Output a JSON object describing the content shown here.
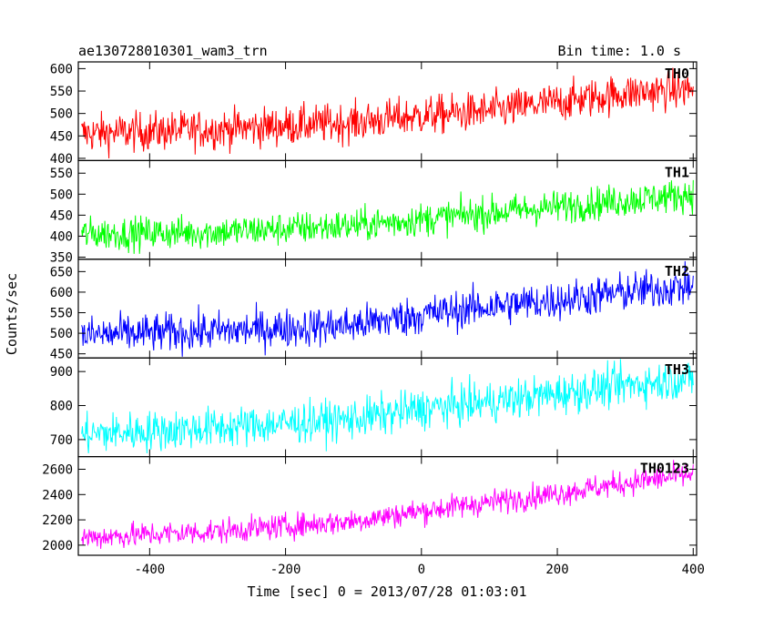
{
  "chart_data": {
    "type": "line",
    "title": "ae130728010301_wam3_trn",
    "bin_time_label": "Bin time: 1.0 s",
    "xlabel": "Time [sec] 0 = 2013/07/28 01:03:01",
    "ylabel": "Counts/sec",
    "x_range": [
      -505,
      405
    ],
    "x_ticks": [
      -400,
      -200,
      0,
      200,
      400
    ],
    "grid": false,
    "panels": [
      {
        "name": "TH0",
        "color": "#ff0000",
        "ylim": [
          395,
          615
        ],
        "yticks": [
          400,
          450,
          500,
          550,
          600
        ],
        "trend": [
          [
            -500,
            455
          ],
          [
            -300,
            465
          ],
          [
            -100,
            480
          ],
          [
            0,
            495
          ],
          [
            100,
            505
          ],
          [
            200,
            525
          ],
          [
            300,
            545
          ],
          [
            400,
            555
          ]
        ],
        "noise": 22
      },
      {
        "name": "TH1",
        "color": "#00ff00",
        "ylim": [
          345,
          580
        ],
        "yticks": [
          350,
          400,
          450,
          500,
          550
        ],
        "trend": [
          [
            -500,
            405
          ],
          [
            -300,
            410
          ],
          [
            -100,
            425
          ],
          [
            0,
            440
          ],
          [
            100,
            455
          ],
          [
            200,
            470
          ],
          [
            300,
            485
          ],
          [
            400,
            500
          ]
        ],
        "noise": 20
      },
      {
        "name": "TH2",
        "color": "#0000ff",
        "ylim": [
          440,
          680
        ],
        "yticks": [
          450,
          500,
          550,
          600,
          650
        ],
        "trend": [
          [
            -500,
            495
          ],
          [
            -300,
            505
          ],
          [
            -100,
            520
          ],
          [
            0,
            545
          ],
          [
            100,
            565
          ],
          [
            200,
            580
          ],
          [
            300,
            600
          ],
          [
            400,
            615
          ]
        ],
        "noise": 24
      },
      {
        "name": "TH3",
        "color": "#00ffff",
        "ylim": [
          650,
          940
        ],
        "yticks": [
          700,
          800,
          900
        ],
        "trend": [
          [
            -500,
            715
          ],
          [
            -300,
            735
          ],
          [
            -100,
            760
          ],
          [
            0,
            790
          ],
          [
            100,
            810
          ],
          [
            200,
            835
          ],
          [
            300,
            860
          ],
          [
            400,
            880
          ]
        ],
        "noise": 30
      },
      {
        "name": "TH0123",
        "color": "#ff00ff",
        "ylim": [
          1920,
          2700
        ],
        "yticks": [
          2000,
          2200,
          2400,
          2600
        ],
        "trend": [
          [
            -500,
            2060
          ],
          [
            -300,
            2110
          ],
          [
            -100,
            2190
          ],
          [
            0,
            2270
          ],
          [
            100,
            2340
          ],
          [
            200,
            2410
          ],
          [
            300,
            2490
          ],
          [
            400,
            2560
          ]
        ],
        "noise": 50
      }
    ]
  }
}
